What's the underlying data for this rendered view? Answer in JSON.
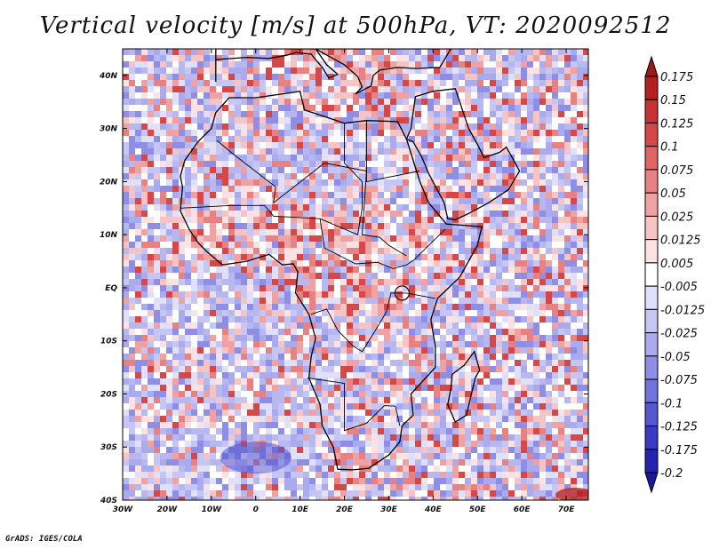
{
  "title": "Vertical velocity [m/s] at 500hPa, VT: 2020092512",
  "credit": "GrADS: IGES/COLA",
  "map": {
    "lon_range": [
      -30,
      75
    ],
    "lat_range": [
      -40,
      45
    ],
    "x_ticks": [
      {
        "lon": -30,
        "label": "30W"
      },
      {
        "lon": -20,
        "label": "20W"
      },
      {
        "lon": -10,
        "label": "10W"
      },
      {
        "lon": 0,
        "label": "0"
      },
      {
        "lon": 10,
        "label": "10E"
      },
      {
        "lon": 20,
        "label": "20E"
      },
      {
        "lon": 30,
        "label": "30E"
      },
      {
        "lon": 40,
        "label": "40E"
      },
      {
        "lon": 50,
        "label": "50E"
      },
      {
        "lon": 60,
        "label": "60E"
      },
      {
        "lon": 70,
        "label": "70E"
      }
    ],
    "y_ticks": [
      {
        "lat": 40,
        "label": "40N"
      },
      {
        "lat": 30,
        "label": "30N"
      },
      {
        "lat": 20,
        "label": "20N"
      },
      {
        "lat": 10,
        "label": "10N"
      },
      {
        "lat": 0,
        "label": "EQ"
      },
      {
        "lat": -10,
        "label": "10S"
      },
      {
        "lat": -20,
        "label": "20S"
      },
      {
        "lat": -30,
        "label": "30S"
      },
      {
        "lat": -40,
        "label": "40S"
      }
    ]
  },
  "colorbar": {
    "labels": [
      "0.175",
      "0.15",
      "0.125",
      "0.1",
      "0.075",
      "0.05",
      "0.025",
      "0.0125",
      "0.005",
      "-0.005",
      "-0.0125",
      "-0.025",
      "-0.05",
      "-0.075",
      "-0.1",
      "-0.125",
      "-0.175",
      "-0.2"
    ],
    "colors": [
      "#9e1a1a",
      "#b42020",
      "#c83232",
      "#d64848",
      "#e06464",
      "#e88282",
      "#f0a2a2",
      "#f6c4c4",
      "#fce2e2",
      "#ffffff",
      "#e0e0fa",
      "#c6c6f4",
      "#aaaaee",
      "#8e8ee6",
      "#7272dc",
      "#5656d0",
      "#3a3ac2",
      "#2424b0",
      "#1a1a9a"
    ]
  }
}
